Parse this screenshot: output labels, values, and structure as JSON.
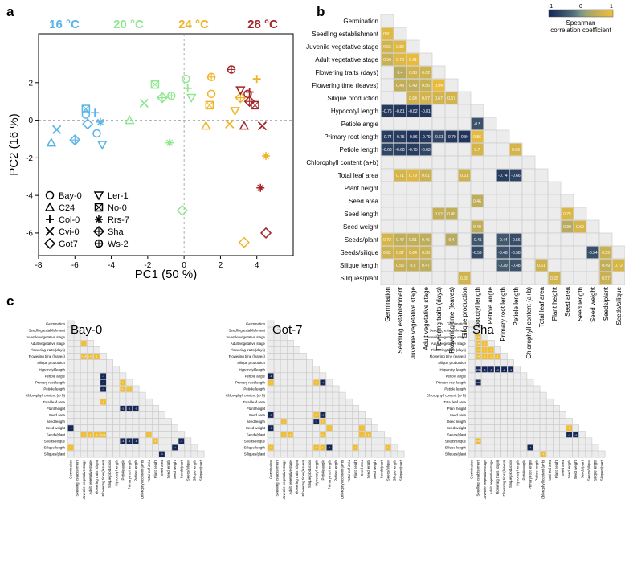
{
  "panel_labels": [
    "a",
    "b",
    "c"
  ],
  "chart_data": [
    {
      "type": "scatter",
      "panel": "a",
      "title": "",
      "xlabel": "PC1 (50 %)",
      "ylabel": "PC2 (16 %)",
      "xlim": [
        -8,
        6
      ],
      "ylim": [
        -7.2,
        4.6
      ],
      "xticks": [
        -8,
        -6,
        -4,
        -2,
        0,
        2,
        4
      ],
      "yticks": [
        -6,
        -4,
        -2,
        0,
        2
      ],
      "temperatures": [
        {
          "label": "16 °C",
          "color": "#5ab4e5"
        },
        {
          "label": "20 °C",
          "color": "#8fe78f"
        },
        {
          "label": "24 °C",
          "color": "#f0b429"
        },
        {
          "label": "28 °C",
          "color": "#a3262a"
        }
      ],
      "legend": [
        {
          "label": "Bay-0",
          "marker": "circle"
        },
        {
          "label": "C24",
          "marker": "triangle-up"
        },
        {
          "label": "Col-0",
          "marker": "plus"
        },
        {
          "label": "Cvi-0",
          "marker": "cross"
        },
        {
          "label": "Got7",
          "marker": "diamond"
        },
        {
          "label": "Ler-1",
          "marker": "triangle-down"
        },
        {
          "label": "No-0",
          "marker": "square-x"
        },
        {
          "label": "Rrs-7",
          "marker": "asterisk"
        },
        {
          "label": "Sha",
          "marker": "diamond-plus"
        },
        {
          "label": "Ws-2",
          "marker": "circle-plus"
        }
      ],
      "points": [
        {
          "t": 0,
          "m": "circle",
          "x": -5.4,
          "y": 0.3
        },
        {
          "t": 0,
          "m": "circle",
          "x": -4.8,
          "y": -0.7
        },
        {
          "t": 0,
          "m": "triangle-up",
          "x": -7.3,
          "y": -1.2
        },
        {
          "t": 0,
          "m": "plus",
          "x": -4.9,
          "y": 0.4
        },
        {
          "t": 0,
          "m": "cross",
          "x": -7.0,
          "y": -0.5
        },
        {
          "t": 0,
          "m": "diamond",
          "x": -5.3,
          "y": -0.2
        },
        {
          "t": 0,
          "m": "triangle-down",
          "x": -4.5,
          "y": -1.3
        },
        {
          "t": 0,
          "m": "square-x",
          "x": -5.4,
          "y": 0.6
        },
        {
          "t": 0,
          "m": "asterisk",
          "x": -4.6,
          "y": -0.1
        },
        {
          "t": 0,
          "m": "diamond-plus",
          "x": -6.0,
          "y": -1.05
        },
        {
          "t": 1,
          "m": "circle",
          "x": 0.1,
          "y": 2.2
        },
        {
          "t": 1,
          "m": "triangle-up",
          "x": -3.0,
          "y": 0.0
        },
        {
          "t": 1,
          "m": "plus",
          "x": 0.2,
          "y": 1.7
        },
        {
          "t": 1,
          "m": "cross",
          "x": -2.2,
          "y": 0.9
        },
        {
          "t": 1,
          "m": "diamond",
          "x": -0.1,
          "y": -4.8
        },
        {
          "t": 1,
          "m": "triangle-down",
          "x": 0.4,
          "y": 1.2
        },
        {
          "t": 1,
          "m": "square-x",
          "x": -1.6,
          "y": 1.9
        },
        {
          "t": 1,
          "m": "asterisk",
          "x": -0.8,
          "y": -1.2
        },
        {
          "t": 1,
          "m": "diamond-plus",
          "x": -1.2,
          "y": 1.2
        },
        {
          "t": 1,
          "m": "circle-plus",
          "x": -0.7,
          "y": 1.3
        },
        {
          "t": 2,
          "m": "circle",
          "x": 1.5,
          "y": 1.4
        },
        {
          "t": 2,
          "m": "triangle-up",
          "x": 1.2,
          "y": -0.3
        },
        {
          "t": 2,
          "m": "plus",
          "x": 4.0,
          "y": 2.2
        },
        {
          "t": 2,
          "m": "cross",
          "x": 2.5,
          "y": -0.2
        },
        {
          "t": 2,
          "m": "diamond",
          "x": 3.3,
          "y": -6.5
        },
        {
          "t": 2,
          "m": "triangle-down",
          "x": 2.8,
          "y": 0.5
        },
        {
          "t": 2,
          "m": "square-x",
          "x": 1.4,
          "y": 0.8
        },
        {
          "t": 2,
          "m": "asterisk",
          "x": 4.5,
          "y": -1.9
        },
        {
          "t": 2,
          "m": "diamond-plus",
          "x": 3.1,
          "y": 1.2
        },
        {
          "t": 2,
          "m": "circle-plus",
          "x": 1.5,
          "y": 2.3
        },
        {
          "t": 3,
          "m": "circle",
          "x": 3.5,
          "y": 1.4
        },
        {
          "t": 3,
          "m": "triangle-up",
          "x": 3.3,
          "y": -0.3
        },
        {
          "t": 3,
          "m": "plus",
          "x": 3.6,
          "y": 1.5
        },
        {
          "t": 3,
          "m": "cross",
          "x": 4.3,
          "y": -0.3
        },
        {
          "t": 3,
          "m": "diamond",
          "x": 4.5,
          "y": -6.0
        },
        {
          "t": 3,
          "m": "triangle-down",
          "x": 3.1,
          "y": 1.6
        },
        {
          "t": 3,
          "m": "square-x",
          "x": 3.9,
          "y": 0.8
        },
        {
          "t": 3,
          "m": "asterisk",
          "x": 4.2,
          "y": -3.6
        },
        {
          "t": 3,
          "m": "diamond-plus",
          "x": 3.6,
          "y": 1.0
        },
        {
          "t": 3,
          "m": "circle-plus",
          "x": 2.6,
          "y": 2.7
        }
      ]
    },
    {
      "type": "heatmap",
      "panel": "b",
      "title": "",
      "traits": [
        "Germination",
        "Seedling establishment",
        "Juvenile vegetative stage",
        "Adult vegetative stage",
        "Flowering traits (days)",
        "Flowering time (leaves)",
        "Silique production",
        "Hypocotyl length",
        "Petiole angle",
        "Primary root length",
        "Petiole length",
        "Chlorophyll content (a+b)",
        "Total leaf area",
        "Plant height",
        "Seed area",
        "Seed length",
        "Seed weight",
        "Seeds/plant",
        "Seeds/silique",
        "Silique length",
        "Siliques/plant"
      ],
      "colorbar": {
        "label": "Spearman correlation coefficient",
        "ticks": [
          "-1",
          "0",
          "1"
        ],
        "range": [
          -1,
          1
        ]
      },
      "cells": [
        [
          1,
          0,
          "0.81"
        ],
        [
          2,
          0,
          "0.66"
        ],
        [
          2,
          1,
          "0.82"
        ],
        [
          3,
          0,
          "0.56"
        ],
        [
          3,
          1,
          "0.78"
        ],
        [
          3,
          2,
          "0.91"
        ],
        [
          4,
          1,
          "0.4"
        ],
        [
          4,
          2,
          "0.63"
        ],
        [
          4,
          3,
          "0.62"
        ],
        [
          5,
          1,
          "0.48"
        ],
        [
          5,
          2,
          "0.49"
        ],
        [
          5,
          3,
          "0.56"
        ],
        [
          5,
          4,
          "0.94"
        ],
        [
          6,
          2,
          "0.64"
        ],
        [
          6,
          3,
          "0.67"
        ],
        [
          6,
          4,
          "0.67"
        ],
        [
          6,
          5,
          "0.67"
        ],
        [
          7,
          0,
          "-0.76"
        ],
        [
          7,
          1,
          "-0.81"
        ],
        [
          7,
          2,
          "-0.82"
        ],
        [
          7,
          3,
          "-0.81"
        ],
        [
          8,
          7,
          "-0.5"
        ],
        [
          9,
          0,
          "-0.74"
        ],
        [
          9,
          1,
          "-0.75"
        ],
        [
          9,
          2,
          "-0.86"
        ],
        [
          9,
          3,
          "-0.79"
        ],
        [
          9,
          4,
          "-0.61"
        ],
        [
          9,
          5,
          "-0.79"
        ],
        [
          9,
          6,
          "-0.84"
        ],
        [
          9,
          7,
          "0.86"
        ],
        [
          10,
          0,
          "-0.63"
        ],
        [
          10,
          1,
          "-0.68"
        ],
        [
          10,
          2,
          "-0.75"
        ],
        [
          10,
          3,
          "-0.63"
        ],
        [
          10,
          7,
          "0.7"
        ],
        [
          10,
          10,
          "0.69"
        ],
        [
          12,
          1,
          "0.71"
        ],
        [
          12,
          2,
          "0.79"
        ],
        [
          12,
          3,
          "0.61"
        ],
        [
          12,
          6,
          "0.61"
        ],
        [
          12,
          9,
          "-0.74"
        ],
        [
          12,
          10,
          "-0.66"
        ],
        [
          14,
          7,
          "0.46"
        ],
        [
          15,
          4,
          "0.52"
        ],
        [
          15,
          5,
          "0.48"
        ],
        [
          15,
          14,
          "0.75"
        ],
        [
          16,
          7,
          "0.49"
        ],
        [
          16,
          14,
          "0.39"
        ],
        [
          16,
          15,
          "0.69"
        ],
        [
          17,
          0,
          "0.72"
        ],
        [
          17,
          1,
          "0.47"
        ],
        [
          17,
          2,
          "0.51"
        ],
        [
          17,
          3,
          "0.46"
        ],
        [
          17,
          5,
          "0.4"
        ],
        [
          17,
          7,
          "-0.45"
        ],
        [
          17,
          9,
          "-0.44"
        ],
        [
          17,
          10,
          "-0.56"
        ],
        [
          18,
          0,
          "0.62"
        ],
        [
          18,
          1,
          "0.67"
        ],
        [
          18,
          2,
          "0.64"
        ],
        [
          18,
          3,
          "0.58"
        ],
        [
          18,
          7,
          "-0.59"
        ],
        [
          18,
          9,
          "-0.48"
        ],
        [
          18,
          10,
          "-0.58"
        ],
        [
          18,
          16,
          "-0.54"
        ],
        [
          18,
          17,
          "0.59"
        ],
        [
          19,
          1,
          "0.55"
        ],
        [
          19,
          2,
          "0.5"
        ],
        [
          19,
          3,
          "0.47"
        ],
        [
          19,
          9,
          "-0.39"
        ],
        [
          19,
          10,
          "-0.48"
        ],
        [
          19,
          12,
          "0.61"
        ],
        [
          19,
          17,
          "0.49"
        ],
        [
          19,
          18,
          "0.72"
        ],
        [
          20,
          6,
          "0.66"
        ],
        [
          20,
          13,
          "0.65"
        ],
        [
          20,
          17,
          "0.57"
        ]
      ]
    },
    {
      "type": "heatmap",
      "panel": "c",
      "title": "Bay-0",
      "traits": [
        "Germination",
        "Seedling establishment",
        "Juvenile vegetative stage",
        "Adult vegetative stage",
        "Flowering traits (days)",
        "Flowering time (leaves)",
        "Silique production",
        "Hypocotyl length",
        "Petiole angle",
        "Primary root length",
        "Petiole length",
        "Chlorophyll content (a+b)",
        "Total leaf area",
        "Plant height",
        "Seed area",
        "Seed length",
        "Seed weight",
        "Seeds/plant",
        "Seeds/silique",
        "Silique length",
        "Siliques/plant"
      ],
      "cells": [
        [
          3,
          2,
          "1"
        ],
        [
          5,
          2,
          "0.94"
        ],
        [
          5,
          3,
          "0.94"
        ],
        [
          5,
          4,
          "1"
        ],
        [
          8,
          5,
          "-1"
        ],
        [
          9,
          5,
          "-1"
        ],
        [
          9,
          8,
          "1"
        ],
        [
          10,
          5,
          "-1"
        ],
        [
          10,
          8,
          "1"
        ],
        [
          10,
          9,
          "1"
        ],
        [
          12,
          5,
          "1"
        ],
        [
          13,
          8,
          "-1"
        ],
        [
          13,
          9,
          "-1"
        ],
        [
          13,
          10,
          "-1"
        ],
        [
          16,
          0,
          "-1"
        ],
        [
          17,
          2,
          "1"
        ],
        [
          17,
          3,
          "1"
        ],
        [
          17,
          4,
          "1"
        ],
        [
          17,
          5,
          "0.94"
        ],
        [
          17,
          12,
          "1"
        ],
        [
          18,
          8,
          "-1"
        ],
        [
          18,
          9,
          "-1"
        ],
        [
          18,
          10,
          "-1"
        ],
        [
          18,
          13,
          "1"
        ],
        [
          18,
          17,
          "-1"
        ],
        [
          19,
          0,
          "1"
        ],
        [
          19,
          16,
          "-1"
        ],
        [
          20,
          14,
          "-1"
        ]
      ]
    },
    {
      "type": "heatmap",
      "panel": "c",
      "title": "Got-7",
      "traits": [
        "Germination",
        "Seedling establishment",
        "Juvenile vegetative stage",
        "Adult vegetative stage",
        "Flowering traits (days)",
        "Flowering time (leaves)",
        "Silique production",
        "Hypocotyl length",
        "Petiole angle",
        "Primary root length",
        "Petiole length",
        "Chlorophyll content (a+b)",
        "Total leaf area",
        "Plant height",
        "Seed area",
        "Seed length",
        "Seed weight",
        "Seeds/plant",
        "Seeds/silique",
        "Silique length",
        "Siliques/plant"
      ],
      "cells": [
        [
          8,
          0,
          "-1"
        ],
        [
          9,
          0,
          "1"
        ],
        [
          9,
          7,
          "1"
        ],
        [
          9,
          8,
          "-1"
        ],
        [
          14,
          0,
          "-1"
        ],
        [
          14,
          7,
          "1"
        ],
        [
          14,
          8,
          "-1"
        ],
        [
          15,
          2,
          "1"
        ],
        [
          15,
          7,
          "-1"
        ],
        [
          15,
          8,
          "1"
        ],
        [
          16,
          0,
          "-1"
        ],
        [
          16,
          9,
          "1"
        ],
        [
          16,
          14,
          "1"
        ],
        [
          17,
          2,
          "1"
        ],
        [
          17,
          3,
          "1"
        ],
        [
          17,
          8,
          "1"
        ],
        [
          17,
          14,
          "1"
        ],
        [
          17,
          15,
          "1"
        ],
        [
          19,
          0,
          "1"
        ],
        [
          19,
          7,
          "1"
        ],
        [
          19,
          8,
          "1"
        ],
        [
          19,
          9,
          "-1"
        ],
        [
          19,
          13,
          "1"
        ],
        [
          19,
          18,
          "1"
        ]
      ]
    },
    {
      "type": "heatmap",
      "panel": "c",
      "title": "Sha",
      "traits": [
        "Germination",
        "Seedling establishment",
        "Juvenile vegetative stage",
        "Adult vegetative stage",
        "Flowering traits (days)",
        "Flowering time (leaves)",
        "Silique production",
        "Hypocotyl length",
        "Petiole angle",
        "Primary root length",
        "Petiole length",
        "Chlorophyll content (a+b)",
        "Total leaf area",
        "Plant height",
        "Seed area",
        "Seed length",
        "Seed weight",
        "Seeds/plant",
        "Seeds/silique",
        "Silique length",
        "Siliques/plant"
      ],
      "cells": [
        [
          2,
          1,
          "0.94"
        ],
        [
          3,
          1,
          "0.94"
        ],
        [
          3,
          2,
          "1"
        ],
        [
          4,
          1,
          "0.94"
        ],
        [
          4,
          2,
          "1"
        ],
        [
          4,
          3,
          "1"
        ],
        [
          5,
          1,
          "0.94"
        ],
        [
          5,
          2,
          "1"
        ],
        [
          5,
          3,
          "1"
        ],
        [
          5,
          4,
          "1"
        ],
        [
          7,
          1,
          "-0.94"
        ],
        [
          7,
          2,
          "-1"
        ],
        [
          7,
          3,
          "-1"
        ],
        [
          7,
          4,
          "-1"
        ],
        [
          7,
          5,
          "-1"
        ],
        [
          7,
          6,
          "-1"
        ],
        [
          9,
          1,
          "-0.94"
        ],
        [
          16,
          15,
          "1"
        ],
        [
          17,
          15,
          "-1"
        ],
        [
          17,
          16,
          "-1"
        ],
        [
          18,
          1,
          "0.94"
        ],
        [
          19,
          9,
          "-1"
        ],
        [
          20,
          11,
          "1"
        ]
      ]
    }
  ]
}
